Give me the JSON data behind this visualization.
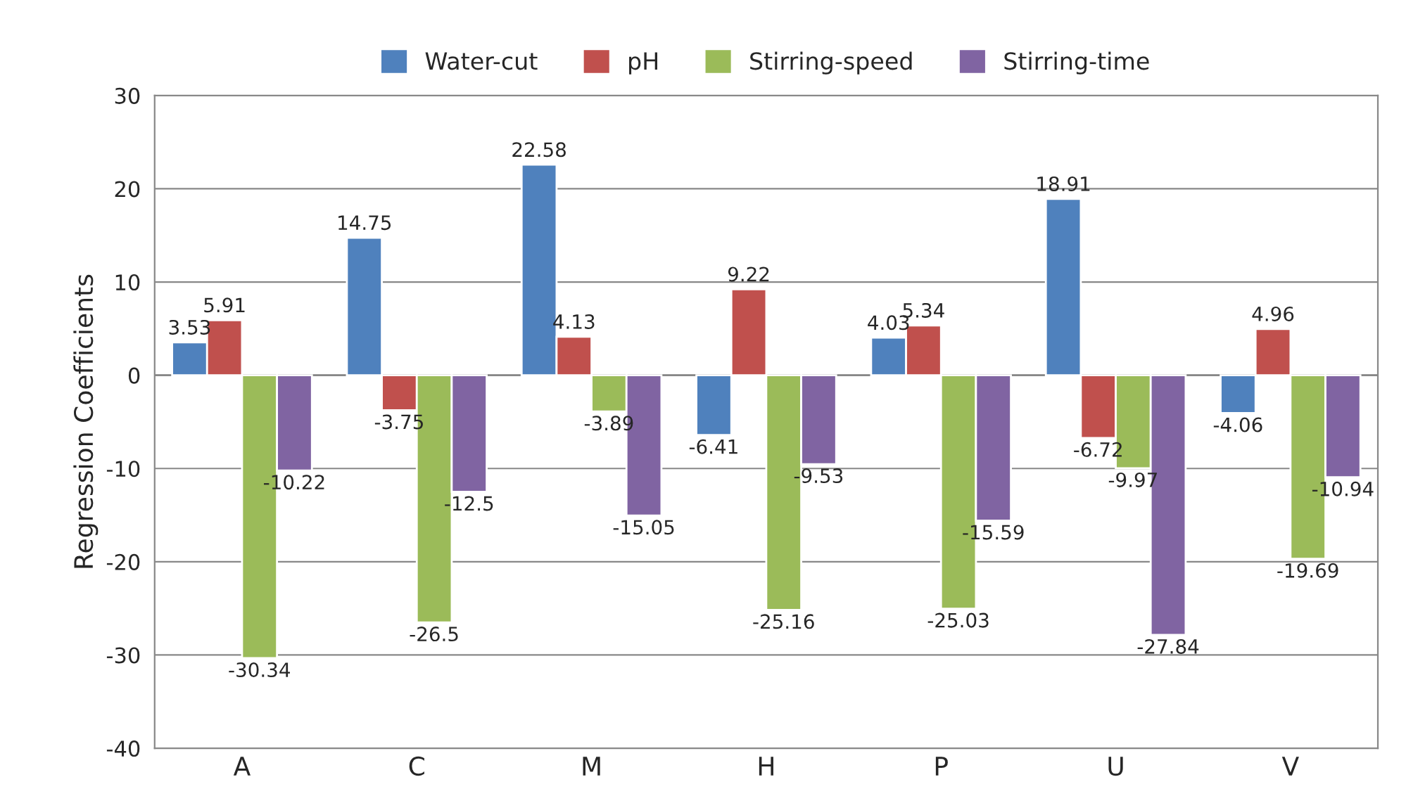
{
  "chart_data": {
    "type": "bar",
    "ylabel": "Regression Coefficients",
    "categories": [
      "A",
      "C",
      "M",
      "H",
      "P",
      "U",
      "V"
    ],
    "series": [
      {
        "name": "Water-cut",
        "color": "#4f81bd",
        "values": [
          3.53,
          14.75,
          22.58,
          -6.41,
          4.03,
          18.91,
          -4.06
        ]
      },
      {
        "name": "pH",
        "color": "#c0504d",
        "values": [
          5.91,
          -3.75,
          4.13,
          9.22,
          5.34,
          -6.72,
          4.96
        ]
      },
      {
        "name": "Stirring-speed",
        "color": "#9bbb59",
        "values": [
          -30.34,
          -26.5,
          -3.89,
          -25.16,
          -25.03,
          -9.97,
          -19.69
        ]
      },
      {
        "name": "Stirring-time",
        "color": "#8064a2",
        "values": [
          -10.22,
          -12.5,
          -15.05,
          -9.53,
          -15.59,
          -27.84,
          -10.94
        ]
      }
    ],
    "ylim": [
      -40,
      30
    ],
    "yticks": [
      -40,
      -30,
      -20,
      -10,
      0,
      10,
      20,
      30
    ],
    "grid": "y",
    "legend": "top",
    "data_labels": true
  }
}
